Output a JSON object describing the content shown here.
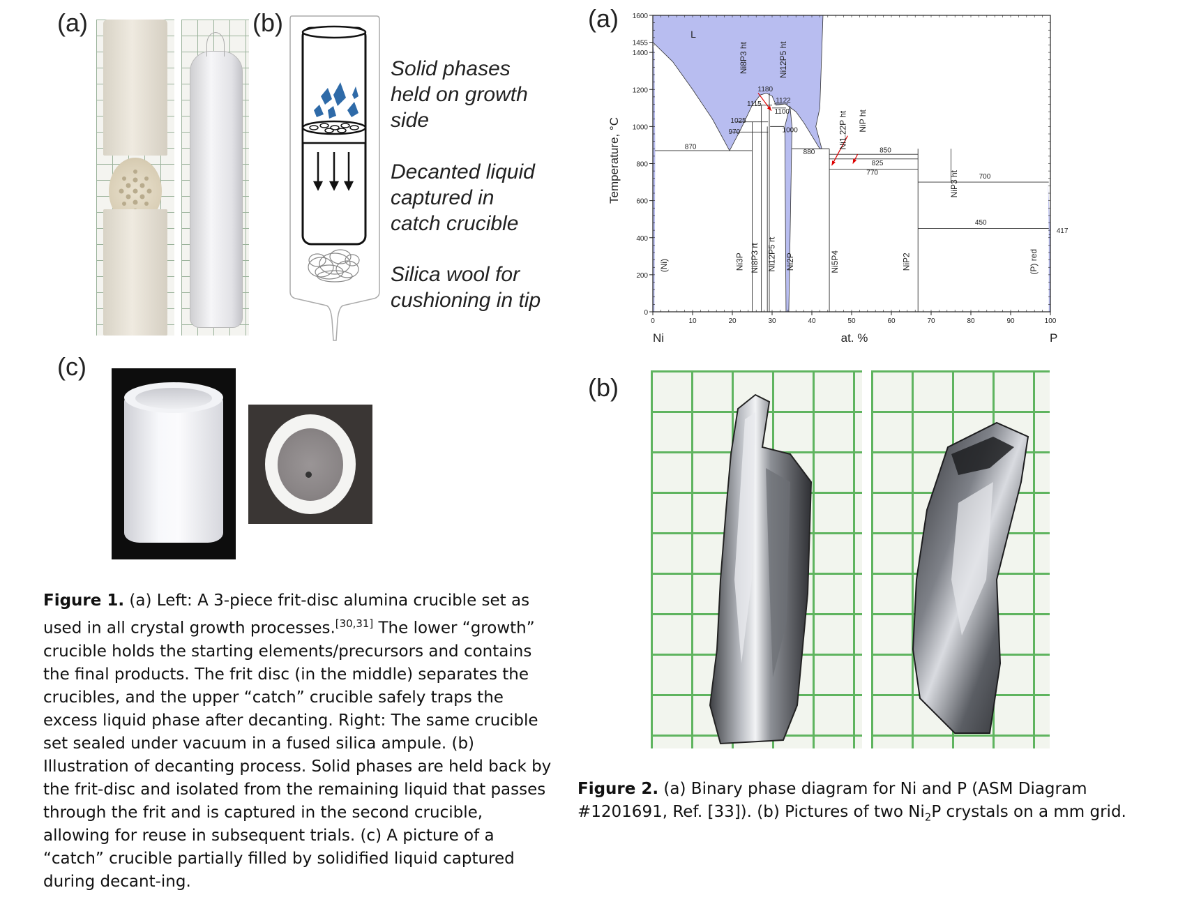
{
  "fig1": {
    "panel_a": "(a)",
    "panel_b": "(b)",
    "panel_c": "(c)",
    "diagram_labels": {
      "solid": [
        "Solid phases",
        "held on growth",
        "side"
      ],
      "decanted": [
        "Decanted liquid",
        "captured in",
        "catch crucible"
      ],
      "wool": [
        "Silica wool for",
        "cushioning in tip"
      ]
    },
    "caption_title": "Figure 1.",
    "caption_part1": " (a) Left: A 3-piece frit-disc alumina crucible set as used in all crystal growth processes.",
    "caption_ref": "[30,31]",
    "caption_part2": " The lower “growth” crucible holds the starting elements/precursors and contains the final products. The frit disc (in the middle) separates the crucibles, and the upper “catch” crucible safely traps the excess liquid phase after decanting. Right: The same crucible set sealed under vacuum in a fused silica ampule. (b) Illustration of decanting process. Solid phases are held back by the frit-disc and isolated from the remaining liquid that passes through the frit and is captured in the second crucible, allowing for reuse in subsequent trials. (c) A picture of a “catch” crucible partially filled by solidified liquid captured during decant-ing."
  },
  "fig2": {
    "panel_a": "(a)",
    "panel_b": "(b)",
    "caption_title": "Figure 2.",
    "caption_part1": " (a) Binary phase diagram for Ni and P (ASM Diagram #1201691, Ref. [33]). (b) Pictures of two Ni",
    "caption_sub": "2",
    "caption_part2": "P crystals on a mm grid."
  },
  "chart_data": {
    "type": "phase-diagram",
    "ylabel": "Temperature, °C",
    "xlabel": "at. %",
    "x_left_element": "Ni",
    "x_right_element": "P",
    "xlim": [
      0,
      100
    ],
    "ylim": [
      0,
      1600
    ],
    "x_ticks": [
      "0",
      "10",
      "20",
      "30",
      "40",
      "50",
      "60",
      "70",
      "80",
      "90",
      "100"
    ],
    "y_ticks": [
      "0",
      "200",
      "400",
      "600",
      "800",
      "1000",
      "1200",
      "1400",
      "1600"
    ],
    "y_extra_ticks": [
      "1455"
    ],
    "liquid_label": "L",
    "temperature_labels": [
      {
        "text": "1180",
        "x": 28.3,
        "y": 1190
      },
      {
        "text": "1115",
        "x": 25.5,
        "y": 1110
      },
      {
        "text": "1122",
        "x": 32.8,
        "y": 1130
      },
      {
        "text": "1100",
        "x": 32.5,
        "y": 1070
      },
      {
        "text": "1025",
        "x": 21.5,
        "y": 1020
      },
      {
        "text": "1000",
        "x": 34.5,
        "y": 970
      },
      {
        "text": "970",
        "x": 20.5,
        "y": 960
      },
      {
        "text": "870",
        "x": 9.5,
        "y": 880
      },
      {
        "text": "880",
        "x": 39.3,
        "y": 850
      },
      {
        "text": "850",
        "x": 58.5,
        "y": 860
      },
      {
        "text": "825",
        "x": 56.5,
        "y": 790
      },
      {
        "text": "770",
        "x": 55.2,
        "y": 740
      },
      {
        "text": "700",
        "x": 83.5,
        "y": 720
      },
      {
        "text": "450",
        "x": 82.5,
        "y": 470
      },
      {
        "text": "417",
        "x": 103,
        "y": 425
      }
    ],
    "phase_labels": [
      {
        "text": "(Ni)",
        "x": 3.5,
        "y": 250,
        "rot": true
      },
      {
        "text": "Ni3P",
        "x": 22.5,
        "y": 270,
        "rot": true
      },
      {
        "text": "Ni8P3 rt",
        "x": 26.3,
        "y": 290,
        "rot": true
      },
      {
        "text": "Ni12P5 rt",
        "x": 30.6,
        "y": 310,
        "rot": true
      },
      {
        "text": "Ni2P",
        "x": 35.3,
        "y": 270,
        "rot": true
      },
      {
        "text": "Ni5P4",
        "x": 46.5,
        "y": 270,
        "rot": true
      },
      {
        "text": "NiP2",
        "x": 64.5,
        "y": 270,
        "rot": true
      },
      {
        "text": "(P) red",
        "x": 96.5,
        "y": 270,
        "rot": true
      },
      {
        "text": "Ni8P3 ht",
        "x": 23.5,
        "y": 1370,
        "rot": true
      },
      {
        "text": "Ni12P5 ht",
        "x": 33.5,
        "y": 1360,
        "rot": true
      },
      {
        "text": "Ni1.22P ht",
        "x": 48.5,
        "y": 980,
        "rot": true
      },
      {
        "text": "NiP ht",
        "x": 53.5,
        "y": 1030,
        "rot": true
      },
      {
        "text": "NiP3 ht",
        "x": 76.5,
        "y": 690,
        "rot": true
      }
    ],
    "phase_boundaries": {
      "liquidus_left": [
        [
          0,
          1455
        ],
        [
          5,
          1350
        ],
        [
          10,
          1200
        ],
        [
          15,
          1040
        ],
        [
          19.3,
          870
        ]
      ],
      "liquidus_mid": [
        [
          19.3,
          870
        ],
        [
          22,
          980
        ],
        [
          25,
          1115
        ],
        [
          27,
          1170
        ],
        [
          28.5,
          1180
        ],
        [
          30,
          1165
        ],
        [
          31,
          1115
        ],
        [
          33.3,
          1122
        ],
        [
          36,
          1080
        ],
        [
          38,
          1020
        ],
        [
          40,
          950
        ],
        [
          42,
          880
        ]
      ]
    }
  }
}
